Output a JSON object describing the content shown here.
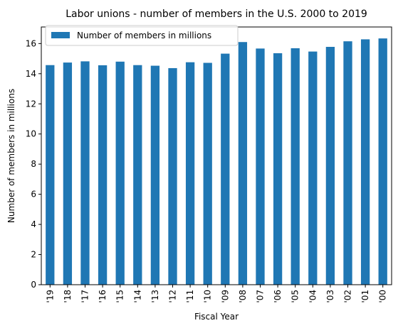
{
  "chart_data": {
    "type": "bar",
    "title": "Labor unions - number of members in the U.S. 2000 to 2019",
    "xlabel": "Fiscal Year",
    "ylabel": "Number of members in millions",
    "categories": [
      "'19",
      "'18",
      "'17",
      "'16",
      "'15",
      "'14",
      "'13",
      "'12",
      "'11",
      "'10",
      "'09",
      "'08",
      "'07",
      "'06",
      "'05",
      "'04",
      "'03",
      "'02",
      "'01",
      "'00"
    ],
    "series": [
      {
        "name": "Number of members in millions",
        "values": [
          14.57,
          14.74,
          14.82,
          14.56,
          14.8,
          14.57,
          14.53,
          14.37,
          14.76,
          14.72,
          15.33,
          16.1,
          15.67,
          15.36,
          15.69,
          15.47,
          15.78,
          16.15,
          16.28,
          16.34
        ]
      }
    ],
    "ylim": [
      0,
      17.1
    ],
    "yticks": [
      0,
      2,
      4,
      6,
      8,
      10,
      12,
      14,
      16
    ],
    "grid": false,
    "legend_position": "top-left",
    "bar_color": "#1f77b4"
  }
}
